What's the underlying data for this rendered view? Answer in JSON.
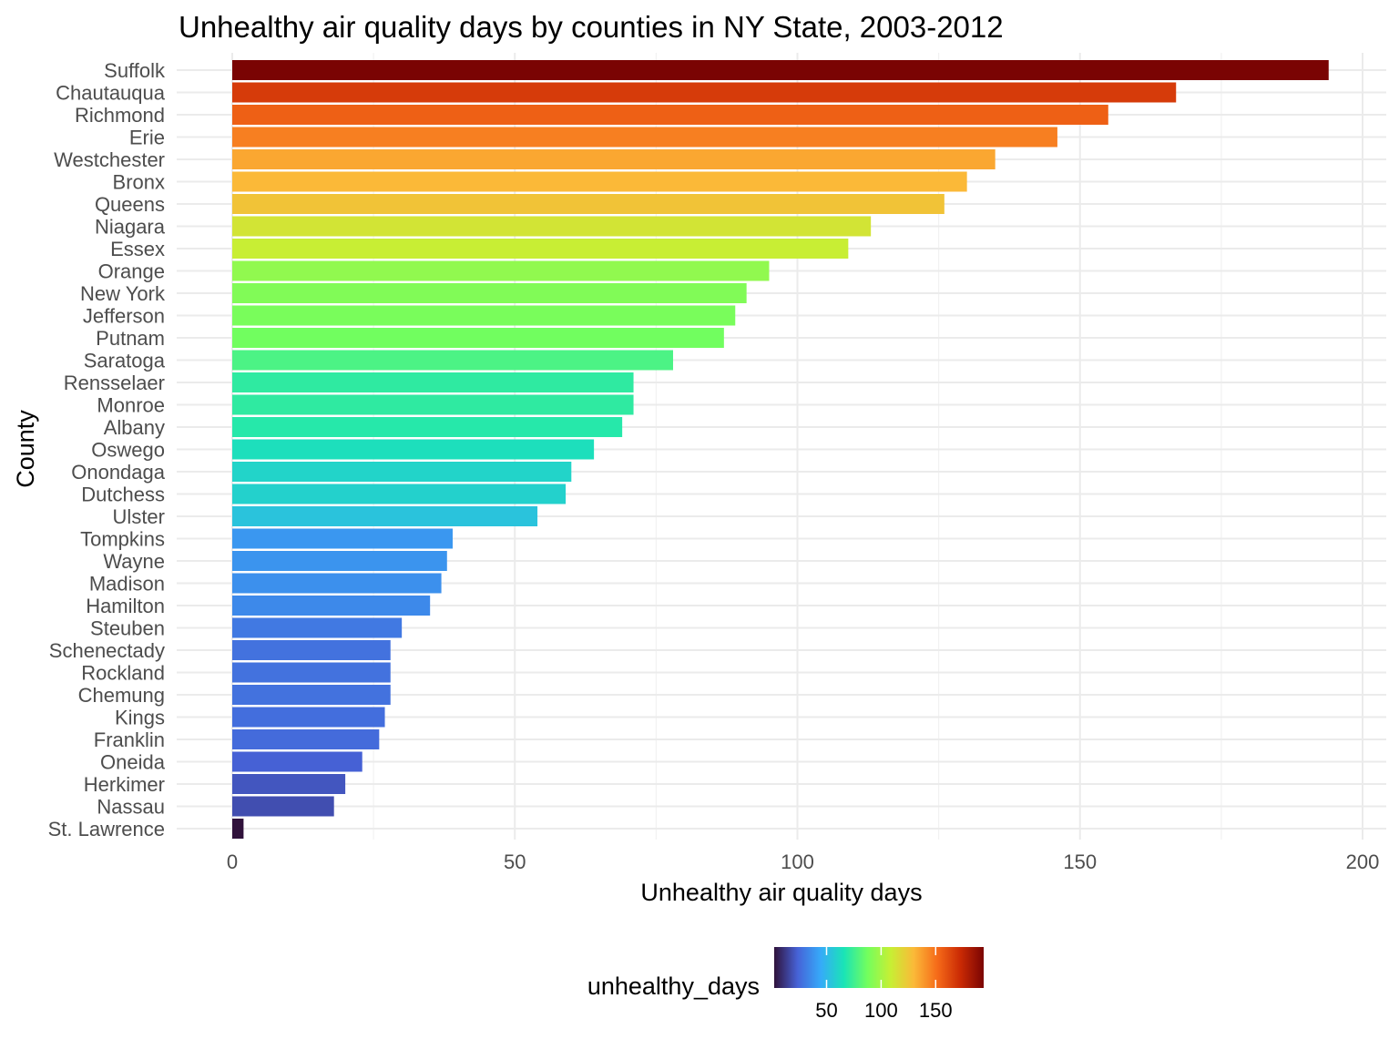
{
  "chart_data": {
    "type": "bar",
    "orientation": "horizontal",
    "title": "Unhealthy air quality days by counties in NY State, 2003-2012",
    "xlabel": "Unhealthy air quality days",
    "ylabel": "County",
    "xlim": [
      0,
      200
    ],
    "x_ticks": [
      0,
      50,
      100,
      150,
      200
    ],
    "grid": true,
    "legend": {
      "title": "unhealthy_days",
      "placement": "bottom",
      "type": "colorbar",
      "ticks": [
        50,
        100,
        150
      ],
      "range": [
        2,
        194
      ],
      "colors": [
        "#30123b",
        "#4662d7",
        "#36aaf9",
        "#1ae4b6",
        "#72fe5e",
        "#c7ef34",
        "#fbb938",
        "#f66b19",
        "#ca2a04",
        "#7a0403"
      ]
    },
    "categories": [
      "Suffolk",
      "Chautauqua",
      "Richmond",
      "Erie",
      "Westchester",
      "Bronx",
      "Queens",
      "Niagara",
      "Essex",
      "Orange",
      "New York",
      "Jefferson",
      "Putnam",
      "Saratoga",
      "Rensselaer",
      "Monroe",
      "Albany",
      "Oswego",
      "Onondaga",
      "Dutchess",
      "Ulster",
      "Tompkins",
      "Wayne",
      "Madison",
      "Hamilton",
      "Steuben",
      "Schenectady",
      "Rockland",
      "Chemung",
      "Kings",
      "Franklin",
      "Oneida",
      "Herkimer",
      "Nassau",
      "St. Lawrence"
    ],
    "values": [
      194,
      167,
      155,
      146,
      135,
      130,
      126,
      113,
      109,
      95,
      91,
      89,
      87,
      78,
      71,
      71,
      69,
      64,
      60,
      59,
      54,
      39,
      38,
      37,
      35,
      30,
      28,
      28,
      28,
      27,
      26,
      23,
      20,
      18,
      2
    ]
  }
}
